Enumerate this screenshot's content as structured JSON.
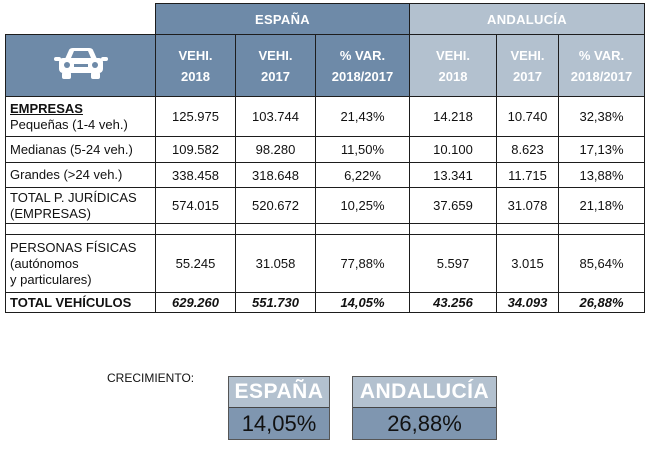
{
  "header": {
    "spain": "ESPAÑA",
    "andalucia": "ANDALUCÍA",
    "car_icon": "car-icon",
    "cols": [
      {
        "a": "VEHI.",
        "b": "2018"
      },
      {
        "a": "VEHI.",
        "b": "2017"
      },
      {
        "a": "% VAR.",
        "b": "2018/2017"
      }
    ]
  },
  "rows": {
    "pequenas": {
      "group": "EMPRESAS",
      "label": "Pequeñas (1-4 veh.)",
      "values": [
        "125.975",
        "103.744",
        "21,43%",
        "14.218",
        "10.740",
        "32,38%"
      ]
    },
    "medianas": {
      "label": "Medianas (5-24 veh.)",
      "values": [
        "109.582",
        "98.280",
        "11,50%",
        "10.100",
        "8.623",
        "17,13%"
      ]
    },
    "grandes": {
      "label": "Grandes (>24 veh.)",
      "values": [
        "338.458",
        "318.648",
        "6,22%",
        "13.341",
        "11.715",
        "13,88%"
      ]
    },
    "juridicas": {
      "label1": "TOTAL P. JURÍDICAS",
      "label2": "(EMPRESAS)",
      "values": [
        "574.015",
        "520.672",
        "10,25%",
        "37.659",
        "31.078",
        "21,18%"
      ]
    },
    "fisicas": {
      "label1": "PERSONAS FÍSICAS",
      "label2": "(autónomos",
      "label3": "y particulares)",
      "values": [
        "55.245",
        "31.058",
        "77,88%",
        "5.597",
        "3.015",
        "85,64%"
      ]
    },
    "total": {
      "label": "TOTAL VEHÍCULOS",
      "values": [
        "629.260",
        "551.730",
        "14,05%",
        "43.256",
        "34.093",
        "26,88%"
      ]
    }
  },
  "growth": {
    "label": "CRECIMIENTO:",
    "spain_name": "ESPAÑA",
    "spain_value": "14,05%",
    "andalucia_name": "ANDALUCÍA",
    "andalucia_value": "26,88%"
  },
  "colors": {
    "spain_header": "#6e8aa8",
    "andalucia_header": "#b3c1cf"
  }
}
